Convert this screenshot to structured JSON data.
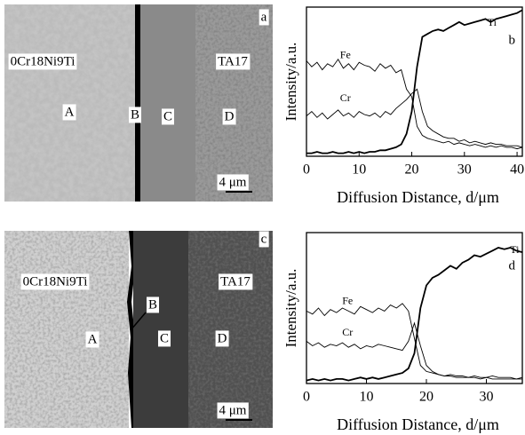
{
  "chart_data": [
    {
      "type": "line",
      "annotation": "b",
      "x_label": "Diffusion Distance, d/μm",
      "y_label": "Intensity/a.u.",
      "x": [
        0,
        1,
        2,
        3,
        4,
        5,
        6,
        7,
        8,
        9,
        10,
        11,
        12,
        13,
        14,
        15,
        16,
        17,
        18,
        19,
        20,
        21,
        22,
        23,
        24,
        25,
        26,
        27,
        28,
        29,
        30,
        31,
        32,
        33,
        34,
        35,
        36,
        37,
        38,
        39,
        40,
        41
      ],
      "xlim": [
        0,
        41
      ],
      "xticks": [
        0,
        10,
        20,
        30,
        40
      ],
      "ylim": [
        0,
        100
      ],
      "series": [
        {
          "name": "Fe",
          "color": "#000",
          "values": [
            64,
            60,
            63,
            58,
            62,
            60,
            65,
            59,
            62,
            58,
            63,
            61,
            60,
            57,
            62,
            59,
            61,
            56,
            58,
            45,
            40,
            20,
            14,
            12,
            11,
            10,
            9,
            10,
            8,
            9,
            8,
            7,
            8,
            7,
            6,
            7,
            6,
            7,
            6,
            6,
            5,
            6
          ]
        },
        {
          "name": "Cr",
          "color": "#000",
          "values": [
            27,
            30,
            26,
            29,
            25,
            28,
            31,
            27,
            29,
            26,
            30,
            28,
            27,
            29,
            26,
            30,
            28,
            32,
            35,
            38,
            42,
            45,
            30,
            20,
            17,
            15,
            13,
            12,
            12,
            10,
            11,
            9,
            10,
            9,
            8,
            9,
            8,
            8,
            7,
            7,
            7,
            6
          ]
        },
        {
          "name": "Ti",
          "color": "#000",
          "values": [
            2,
            2,
            3,
            2,
            2,
            3,
            2,
            2,
            3,
            2,
            3,
            2,
            3,
            3,
            4,
            4,
            5,
            6,
            8,
            15,
            30,
            60,
            80,
            82,
            84,
            85,
            84,
            86,
            88,
            90,
            88,
            89,
            90,
            91,
            92,
            90,
            92,
            93,
            94,
            95,
            96,
            98
          ]
        }
      ]
    },
    {
      "type": "line",
      "annotation": "d",
      "x_label": "Diffusion Distance, d/μm",
      "y_label": "Intensity/a.u.",
      "x": [
        0,
        1,
        2,
        3,
        4,
        5,
        6,
        7,
        8,
        9,
        10,
        11,
        12,
        13,
        14,
        15,
        16,
        17,
        18,
        19,
        20,
        21,
        22,
        23,
        24,
        25,
        26,
        27,
        28,
        29,
        30,
        31,
        32,
        33,
        34,
        35,
        36
      ],
      "xlim": [
        0,
        36
      ],
      "xticks": [
        0,
        10,
        20,
        30
      ],
      "ylim": [
        0,
        100
      ],
      "series": [
        {
          "name": "Fe",
          "color": "#000",
          "values": [
            48,
            46,
            50,
            45,
            49,
            47,
            50,
            48,
            46,
            51,
            49,
            47,
            50,
            48,
            52,
            50,
            53,
            48,
            30,
            12,
            8,
            7,
            6,
            5,
            6,
            5,
            5,
            4,
            5,
            4,
            4,
            5,
            4,
            4,
            4,
            3,
            4
          ]
        },
        {
          "name": "Cr",
          "color": "#000",
          "values": [
            28,
            25,
            27,
            24,
            26,
            25,
            27,
            24,
            26,
            23,
            25,
            24,
            26,
            25,
            24,
            23,
            22,
            28,
            40,
            25,
            12,
            8,
            6,
            5,
            5,
            4,
            4,
            4,
            4,
            3,
            4,
            3,
            3,
            3,
            3,
            3,
            3
          ]
        },
        {
          "name": "Ti",
          "color": "#000",
          "values": [
            2,
            3,
            2,
            3,
            2,
            3,
            3,
            2,
            3,
            4,
            3,
            4,
            3,
            4,
            5,
            6,
            7,
            10,
            20,
            50,
            65,
            70,
            72,
            75,
            78,
            76,
            80,
            82,
            85,
            84,
            86,
            88,
            90,
            89,
            90,
            88,
            87
          ]
        }
      ]
    }
  ],
  "micrographs": [
    {
      "panel": "a",
      "alloy_left": "0Cr18Ni9Ti",
      "alloy_right": "TA17",
      "regions": [
        "A",
        "B",
        "C",
        "D"
      ],
      "scale_bar": "4 μm"
    },
    {
      "panel": "c",
      "alloy_left": "0Cr18Ni9Ti",
      "alloy_right": "TA17",
      "regions": [
        "A",
        "B",
        "C",
        "D"
      ],
      "scale_bar": "4 μm"
    }
  ]
}
